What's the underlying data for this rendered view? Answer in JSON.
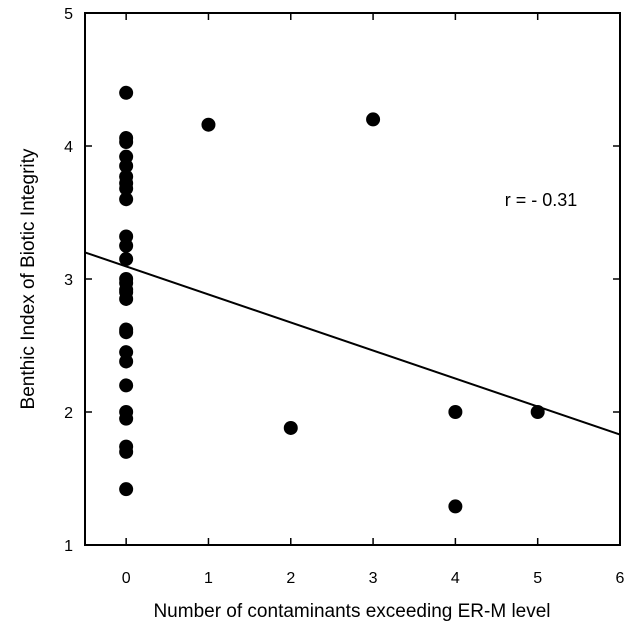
{
  "chart_data": {
    "type": "scatter",
    "title": "",
    "xlabel": "Number of contaminants exceeding ER-M level",
    "ylabel": "Benthic Index of Biotic Integrity",
    "xlim": [
      -0.5,
      6
    ],
    "ylim": [
      1,
      5
    ],
    "xticks": [
      0,
      1,
      2,
      3,
      4,
      5,
      6
    ],
    "yticks": [
      1,
      2,
      3,
      4,
      5
    ],
    "x_tick_labels": [
      "0",
      "1",
      "2",
      "3",
      "4",
      "5",
      "6"
    ],
    "y_tick_labels": [
      "1",
      "2",
      "3",
      "4",
      "5"
    ],
    "grid": false,
    "points": [
      {
        "x": 0,
        "y": 4.4
      },
      {
        "x": 0,
        "y": 4.06
      },
      {
        "x": 0,
        "y": 4.03
      },
      {
        "x": 0,
        "y": 3.92
      },
      {
        "x": 0,
        "y": 3.85
      },
      {
        "x": 0,
        "y": 3.77
      },
      {
        "x": 0,
        "y": 3.72
      },
      {
        "x": 0,
        "y": 3.68
      },
      {
        "x": 0,
        "y": 3.6
      },
      {
        "x": 0,
        "y": 3.32
      },
      {
        "x": 0,
        "y": 3.25
      },
      {
        "x": 0,
        "y": 3.15
      },
      {
        "x": 0,
        "y": 3.0
      },
      {
        "x": 0,
        "y": 2.97
      },
      {
        "x": 0,
        "y": 2.92
      },
      {
        "x": 0,
        "y": 2.9
      },
      {
        "x": 0,
        "y": 2.85
      },
      {
        "x": 0,
        "y": 2.62
      },
      {
        "x": 0,
        "y": 2.6
      },
      {
        "x": 0,
        "y": 2.45
      },
      {
        "x": 0,
        "y": 2.38
      },
      {
        "x": 0,
        "y": 2.2
      },
      {
        "x": 0,
        "y": 2.0
      },
      {
        "x": 0,
        "y": 1.95
      },
      {
        "x": 0,
        "y": 1.74
      },
      {
        "x": 0,
        "y": 1.7
      },
      {
        "x": 0,
        "y": 1.42
      },
      {
        "x": 1,
        "y": 4.16
      },
      {
        "x": 2,
        "y": 1.88
      },
      {
        "x": 3,
        "y": 4.2
      },
      {
        "x": 4,
        "y": 2.0
      },
      {
        "x": 4,
        "y": 1.29
      },
      {
        "x": 5,
        "y": 2.0
      }
    ],
    "regression_line": {
      "x": [
        -0.5,
        6
      ],
      "y": [
        3.2,
        1.83
      ]
    },
    "annotations": [
      {
        "text": "r = - 0.31",
        "x": 4.6,
        "y": 3.55
      }
    ]
  }
}
